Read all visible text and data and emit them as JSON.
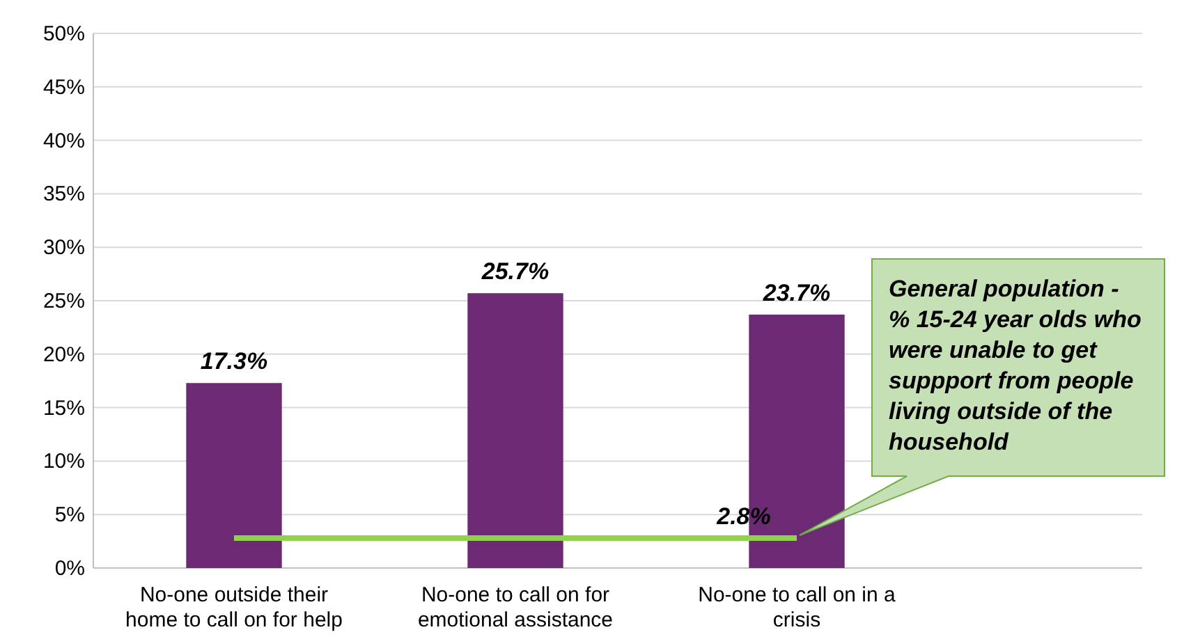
{
  "chart_data": {
    "type": "bar",
    "categories": [
      "No-one outside their home to call on for help",
      "No-one to call on for emotional assistance",
      "No-one to call on in a crisis"
    ],
    "series": [
      {
        "color": "#6b2a73",
        "values": [
          17.3,
          25.7,
          23.7
        ],
        "value_labels": [
          "17.3%",
          "25.7%",
          "23.7%"
        ]
      },
      {
        "type": "line",
        "color": "#92d050",
        "values": [
          2.8,
          2.8,
          2.8
        ],
        "value_labels": [
          null,
          null,
          "2.8%"
        ]
      }
    ],
    "ylim": [
      0,
      50
    ],
    "yticks": [
      {
        "value": 0,
        "label": "0%"
      },
      {
        "value": 5,
        "label": "5%"
      },
      {
        "value": 10,
        "label": "10%"
      },
      {
        "value": 15,
        "label": "15%"
      },
      {
        "value": 20,
        "label": "20%"
      },
      {
        "value": 25,
        "label": "25%"
      },
      {
        "value": 30,
        "label": "30%"
      },
      {
        "value": 35,
        "label": "35%"
      },
      {
        "value": 40,
        "label": "40%"
      },
      {
        "value": 45,
        "label": "45%"
      },
      {
        "value": 50,
        "label": "50%"
      }
    ],
    "grid": "y",
    "annotations": [
      "General population - % 15-24 year olds who were unable to get suppport from people living outside of the household"
    ]
  }
}
